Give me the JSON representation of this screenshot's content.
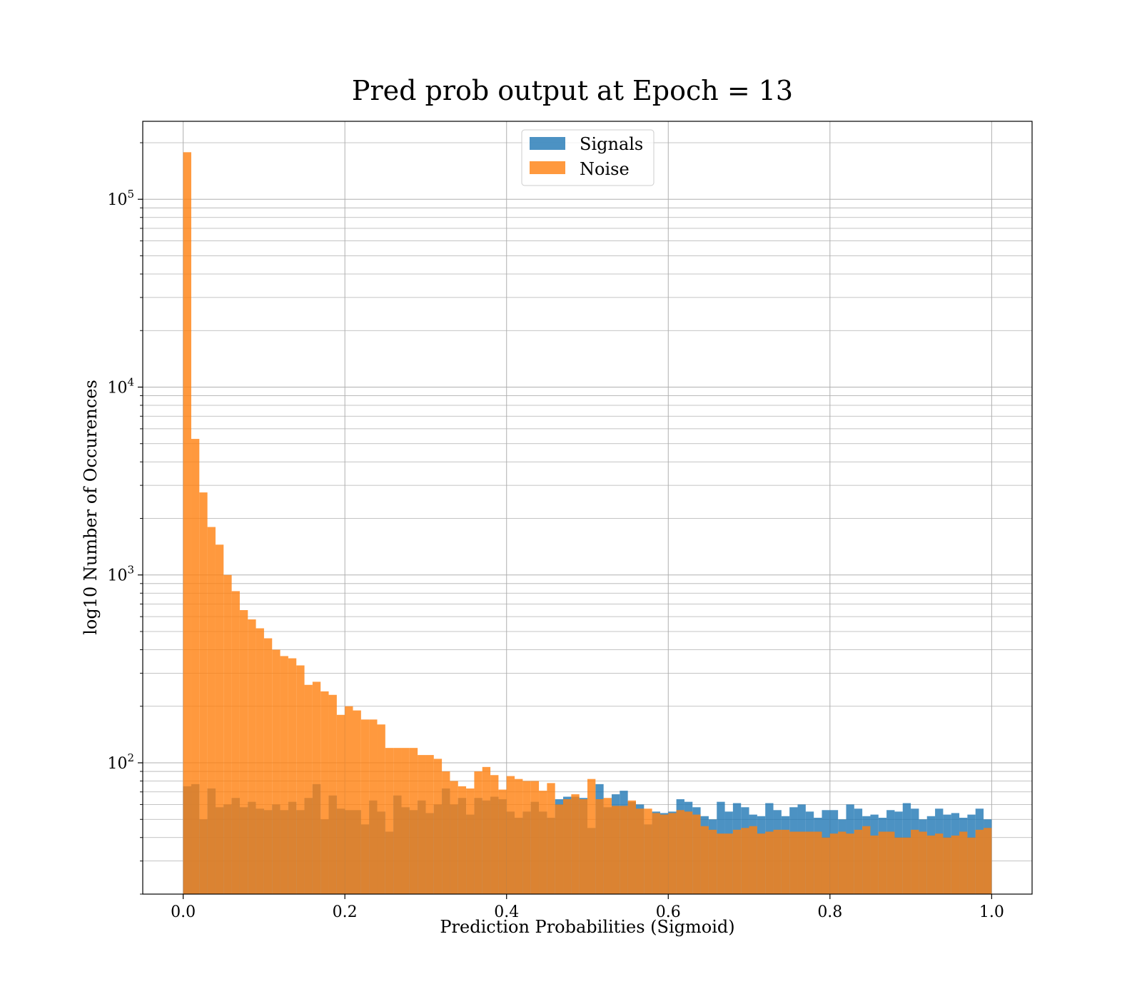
{
  "chart_data": {
    "type": "histogram",
    "title": "Pred prob output at Epoch = 13",
    "xlabel": "Prediction Probabilities (Sigmoid)",
    "ylabel": "log10 Number of Occurences",
    "xlim": [
      -0.05,
      1.05
    ],
    "ylim": [
      20,
      260000
    ],
    "yscale": "log",
    "grid": true,
    "legend_position": "top-center",
    "bin_start": 0.0,
    "bin_width": 0.01,
    "x_ticks": [
      0.0,
      0.2,
      0.4,
      0.6,
      0.8,
      1.0
    ],
    "x_tick_labels": [
      "0.0",
      "0.2",
      "0.4",
      "0.6",
      "0.8",
      "1.0"
    ],
    "y_ticks": [
      100,
      1000,
      10000,
      100000
    ],
    "y_tick_labels": [
      {
        "base": "10",
        "exp": "2"
      },
      {
        "base": "10",
        "exp": "3"
      },
      {
        "base": "10",
        "exp": "4"
      },
      {
        "base": "10",
        "exp": "5"
      }
    ],
    "series": [
      {
        "name": "Signals",
        "color": "#1f77b4",
        "values": [
          75,
          77,
          50,
          73,
          58,
          60,
          65,
          58,
          62,
          57,
          56,
          60,
          56,
          62,
          56,
          65,
          77,
          50,
          67,
          57,
          56,
          56,
          47,
          63,
          55,
          43,
          67,
          58,
          56,
          63,
          54,
          60,
          73,
          60,
          65,
          53,
          65,
          63,
          66,
          64,
          55,
          51,
          55,
          62,
          55,
          51,
          64,
          66,
          66,
          65,
          45,
          77,
          58,
          68,
          71,
          62,
          60,
          47,
          55,
          54,
          55,
          64,
          62,
          58,
          52,
          50,
          62,
          55,
          61,
          58,
          53,
          52,
          61,
          56,
          52,
          58,
          60,
          55,
          51,
          56,
          56,
          50,
          60,
          57,
          52,
          53,
          51,
          56,
          55,
          61,
          57,
          50,
          52,
          57,
          53,
          54,
          51,
          53,
          57,
          50
        ]
      },
      {
        "name": "Noise",
        "color": "#ff7f0e",
        "values": [
          178000,
          5300,
          2750,
          1800,
          1450,
          1000,
          820,
          650,
          580,
          520,
          460,
          400,
          370,
          360,
          330,
          260,
          270,
          240,
          230,
          180,
          200,
          190,
          170,
          170,
          160,
          120,
          120,
          120,
          120,
          110,
          110,
          105,
          90,
          80,
          75,
          73,
          90,
          95,
          86,
          72,
          85,
          82,
          80,
          80,
          71,
          78,
          60,
          64,
          68,
          64,
          82,
          64,
          65,
          59,
          59,
          63,
          57,
          57,
          54,
          53,
          54,
          56,
          55,
          53,
          46,
          44,
          42,
          42,
          44,
          45,
          46,
          42,
          43,
          44,
          44,
          43,
          43,
          43,
          43,
          40,
          42,
          43,
          42,
          44,
          46,
          41,
          43,
          43,
          40,
          40,
          44,
          43,
          41,
          42,
          40,
          41,
          43,
          40,
          44,
          45
        ]
      }
    ]
  }
}
